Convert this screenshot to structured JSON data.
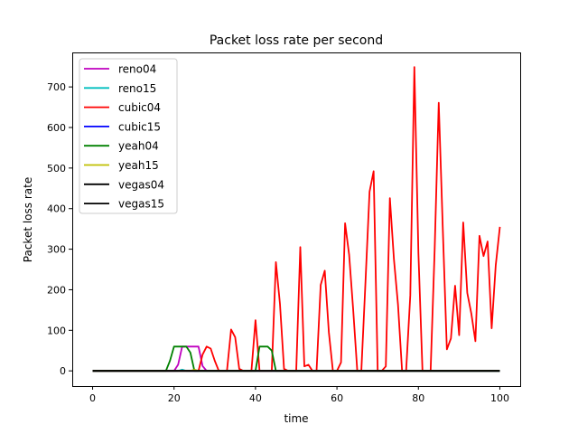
{
  "chart_data": {
    "type": "line",
    "title": "Packet loss rate per second",
    "xlabel": "time",
    "ylabel": "Packet loss rate",
    "xlim": [
      -5,
      105
    ],
    "ylim": [
      -37.5,
      785
    ],
    "xticks": [
      0,
      20,
      40,
      60,
      80,
      100
    ],
    "yticks": [
      0,
      100,
      200,
      300,
      400,
      500,
      600,
      700
    ],
    "grid": false,
    "legend_position": "top-left",
    "x": [
      0,
      1,
      2,
      3,
      4,
      5,
      6,
      7,
      8,
      9,
      10,
      11,
      12,
      13,
      14,
      15,
      16,
      17,
      18,
      19,
      20,
      21,
      22,
      23,
      24,
      25,
      26,
      27,
      28,
      29,
      30,
      31,
      32,
      33,
      34,
      35,
      36,
      37,
      38,
      39,
      40,
      41,
      42,
      43,
      44,
      45,
      46,
      47,
      48,
      49,
      50,
      51,
      52,
      53,
      54,
      55,
      56,
      57,
      58,
      59,
      60,
      61,
      62,
      63,
      64,
      65,
      66,
      67,
      68,
      69,
      70,
      71,
      72,
      73,
      74,
      75,
      76,
      77,
      78,
      79,
      80,
      81,
      82,
      83,
      84,
      85,
      86,
      87,
      88,
      89,
      90,
      91,
      92,
      93,
      94,
      95,
      96,
      97,
      98,
      99,
      100
    ],
    "series": [
      {
        "name": "reno04",
        "color": "#bf00bf",
        "values": [
          0,
          0,
          0,
          0,
          0,
          0,
          0,
          0,
          0,
          0,
          0,
          0,
          0,
          0,
          0,
          0,
          0,
          0,
          0,
          0,
          0,
          15,
          60,
          60,
          60,
          60,
          60,
          12,
          0,
          0,
          0,
          0,
          0,
          0,
          0,
          0,
          0,
          0,
          0,
          0,
          0,
          0,
          0,
          0,
          0,
          0,
          0,
          0,
          0,
          0,
          0,
          0,
          0,
          0,
          0,
          0,
          0,
          0,
          0,
          0,
          0,
          0,
          0,
          0,
          0,
          0,
          0,
          0,
          0,
          0,
          0,
          0,
          0,
          0,
          0,
          0,
          0,
          0,
          0,
          0,
          0,
          0,
          0,
          0,
          0,
          0,
          0,
          0,
          0,
          0,
          0,
          0,
          0,
          0,
          0,
          0,
          0,
          0,
          0,
          0,
          0
        ]
      },
      {
        "name": "reno15",
        "color": "#00bfbf",
        "values": [
          0,
          0,
          0,
          0,
          0,
          0,
          0,
          0,
          0,
          0,
          0,
          0,
          0,
          0,
          0,
          0,
          0,
          0,
          0,
          0,
          0,
          0,
          3,
          0,
          0,
          0,
          0,
          0,
          0,
          0,
          0,
          0,
          0,
          0,
          0,
          0,
          0,
          0,
          0,
          0,
          0,
          0,
          0,
          0,
          0,
          0,
          0,
          0,
          0,
          0,
          0,
          0,
          0,
          0,
          0,
          0,
          0,
          0,
          0,
          0,
          0,
          0,
          0,
          0,
          0,
          0,
          0,
          0,
          0,
          0,
          0,
          0,
          0,
          0,
          0,
          0,
          0,
          0,
          0,
          0,
          0,
          0,
          0,
          0,
          0,
          0,
          0,
          0,
          0,
          0,
          0,
          0,
          0,
          0,
          0,
          0,
          0,
          0,
          0,
          0,
          0
        ]
      },
      {
        "name": "cubic04",
        "color": "#ff0000",
        "values": [
          0,
          0,
          0,
          0,
          0,
          0,
          0,
          0,
          0,
          0,
          0,
          0,
          0,
          0,
          0,
          0,
          0,
          0,
          0,
          0,
          0,
          0,
          0,
          0,
          0,
          0,
          0,
          40,
          60,
          55,
          25,
          0,
          0,
          0,
          102,
          83,
          5,
          0,
          0,
          0,
          125,
          0,
          0,
          0,
          0,
          268,
          165,
          5,
          0,
          0,
          0,
          305,
          11,
          15,
          0,
          0,
          212,
          247,
          96,
          0,
          0,
          21,
          364,
          286,
          150,
          0,
          0,
          220,
          442,
          492,
          0,
          0,
          11,
          426,
          275,
          163,
          0,
          0,
          186,
          749,
          290,
          0,
          0,
          0,
          300,
          661,
          350,
          53,
          80,
          210,
          88,
          366,
          192,
          141,
          73,
          333,
          283,
          319,
          105,
          260,
          355
        ]
      },
      {
        "name": "cubic15",
        "color": "#0000ff",
        "values": [
          0,
          0,
          0,
          0,
          0,
          0,
          0,
          0,
          0,
          0,
          0,
          0,
          0,
          0,
          0,
          0,
          0,
          0,
          0,
          0,
          0,
          0,
          0,
          0,
          0,
          0,
          0,
          0,
          0,
          0,
          0,
          0,
          0,
          0,
          0,
          0,
          0,
          0,
          0,
          0,
          0,
          0,
          0,
          0,
          0,
          0,
          0,
          0,
          0,
          0,
          0,
          0,
          0,
          0,
          0,
          0,
          0,
          0,
          0,
          0,
          0,
          0,
          0,
          0,
          0,
          0,
          0,
          0,
          0,
          0,
          0,
          0,
          0,
          0,
          0,
          0,
          0,
          0,
          0,
          0,
          0,
          0,
          0,
          0,
          0,
          0,
          0,
          0,
          0,
          0,
          0,
          0,
          0,
          0,
          0,
          0,
          0,
          0,
          0,
          0,
          0
        ]
      },
      {
        "name": "yeah04",
        "color": "#008000",
        "values": [
          0,
          0,
          0,
          0,
          0,
          0,
          0,
          0,
          0,
          0,
          0,
          0,
          0,
          0,
          0,
          0,
          0,
          0,
          0,
          25,
          60,
          60,
          60,
          60,
          45,
          0,
          0,
          0,
          0,
          0,
          0,
          0,
          0,
          0,
          0,
          0,
          0,
          0,
          0,
          0,
          0,
          60,
          60,
          60,
          50,
          0,
          0,
          0,
          0,
          0,
          0,
          0,
          0,
          0,
          0,
          0,
          0,
          0,
          0,
          0,
          0,
          0,
          0,
          0,
          0,
          0,
          0,
          0,
          0,
          0,
          0,
          0,
          0,
          0,
          0,
          0,
          0,
          0,
          0,
          0,
          0,
          0,
          0,
          0,
          0,
          0,
          0,
          0,
          0,
          0,
          0,
          0,
          0,
          0,
          0,
          0,
          0,
          0,
          0,
          0,
          0
        ]
      },
      {
        "name": "yeah15",
        "color": "#bfbf00",
        "values": [
          0,
          0,
          0,
          0,
          0,
          0,
          0,
          0,
          0,
          0,
          0,
          0,
          0,
          0,
          0,
          0,
          0,
          0,
          0,
          0,
          0,
          0,
          0,
          0,
          0,
          3,
          0,
          0,
          0,
          0,
          0,
          0,
          0,
          0,
          0,
          0,
          0,
          0,
          0,
          0,
          0,
          0,
          0,
          0,
          0,
          0,
          0,
          0,
          0,
          0,
          0,
          0,
          0,
          0,
          0,
          0,
          0,
          0,
          0,
          0,
          0,
          0,
          0,
          0,
          0,
          0,
          0,
          0,
          0,
          0,
          0,
          0,
          0,
          0,
          0,
          0,
          0,
          0,
          0,
          0,
          0,
          0,
          0,
          0,
          0,
          0,
          0,
          0,
          0,
          0,
          0,
          0,
          0,
          0,
          0,
          0,
          0,
          0,
          0,
          0,
          0
        ]
      },
      {
        "name": "vegas04",
        "color": "#000000",
        "values": [
          0,
          0,
          0,
          0,
          0,
          0,
          0,
          0,
          0,
          0,
          0,
          0,
          0,
          0,
          0,
          0,
          0,
          0,
          0,
          0,
          0,
          0,
          0,
          0,
          0,
          0,
          0,
          0,
          0,
          0,
          0,
          0,
          0,
          0,
          0,
          0,
          0,
          0,
          0,
          0,
          0,
          0,
          0,
          0,
          0,
          0,
          0,
          0,
          0,
          0,
          0,
          0,
          0,
          0,
          0,
          0,
          0,
          0,
          0,
          0,
          0,
          0,
          0,
          0,
          0,
          0,
          0,
          0,
          0,
          0,
          0,
          0,
          0,
          0,
          0,
          0,
          0,
          0,
          0,
          0,
          0,
          0,
          0,
          0,
          0,
          0,
          0,
          0,
          0,
          0,
          0,
          0,
          0,
          0,
          0,
          0,
          0,
          0,
          0,
          0,
          0
        ]
      },
      {
        "name": "vegas15",
        "color": "#000000",
        "values": [
          0,
          0,
          0,
          0,
          0,
          0,
          0,
          0,
          0,
          0,
          0,
          0,
          0,
          0,
          0,
          0,
          0,
          0,
          0,
          0,
          0,
          0,
          0,
          0,
          0,
          0,
          0,
          0,
          0,
          0,
          0,
          0,
          0,
          0,
          0,
          0,
          0,
          0,
          0,
          0,
          0,
          0,
          0,
          0,
          0,
          0,
          0,
          0,
          0,
          0,
          0,
          0,
          0,
          0,
          0,
          0,
          0,
          0,
          0,
          0,
          0,
          0,
          0,
          0,
          0,
          0,
          0,
          0,
          0,
          0,
          0,
          0,
          0,
          0,
          0,
          0,
          0,
          0,
          0,
          0,
          0,
          0,
          0,
          0,
          0,
          0,
          0,
          0,
          0,
          0,
          0,
          0,
          0,
          0,
          0,
          0,
          0,
          0,
          0,
          0,
          0
        ]
      }
    ]
  }
}
